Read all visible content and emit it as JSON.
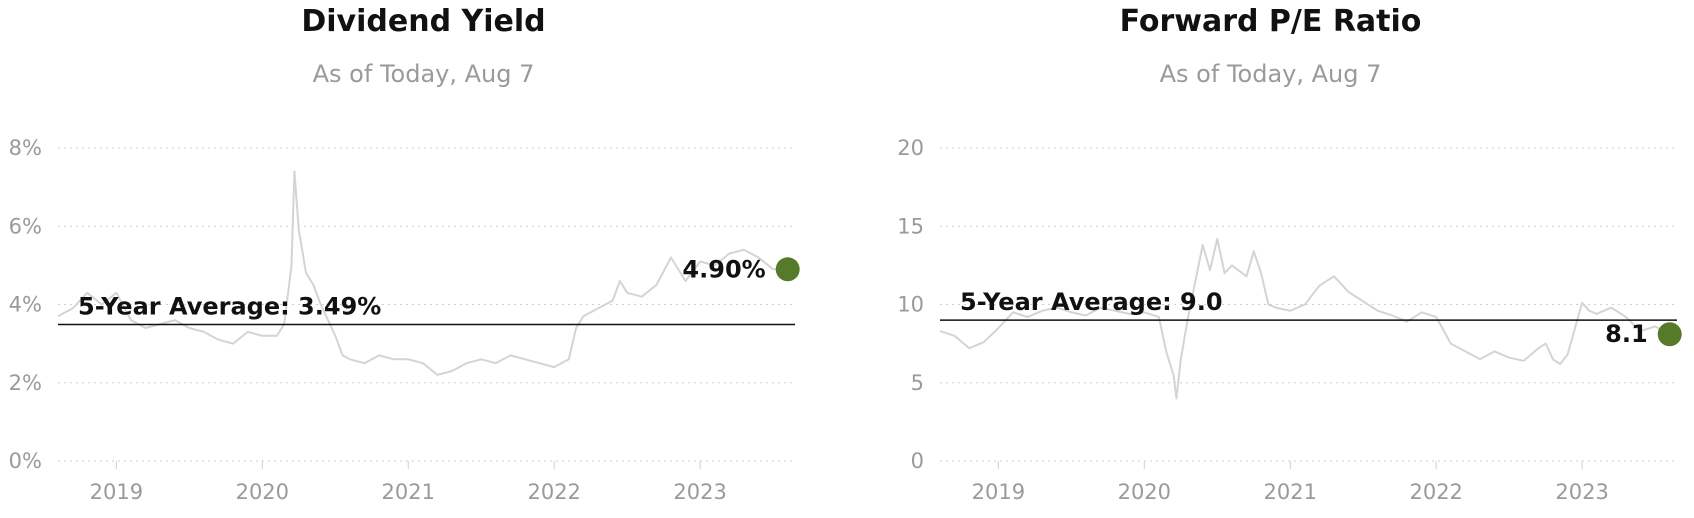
{
  "chart_data": [
    {
      "type": "line",
      "title": "Dividend Yield",
      "subtitle": "As of Today, Aug 7",
      "y_unit": "%",
      "xlim": [
        2018.6,
        2023.65
      ],
      "ylim": [
        0,
        8
      ],
      "y_ticks": [
        0,
        2,
        4,
        6,
        8
      ],
      "y_tick_labels": [
        "0%",
        "2%",
        "4%",
        "6%",
        "8%"
      ],
      "x_ticks": [
        2019,
        2020,
        2021,
        2022,
        2023
      ],
      "x_tick_labels": [
        "2019",
        "2020",
        "2021",
        "2022",
        "2023"
      ],
      "grid": true,
      "average": {
        "value": 3.49,
        "label": "5-Year Average: 3.49%"
      },
      "current": {
        "x": 2023.6,
        "value": 4.9,
        "label": "4.90%",
        "color": "#557a2a"
      },
      "series": [
        {
          "color": "#d4d4d4",
          "x": [
            2018.6,
            2018.7,
            2018.8,
            2018.9,
            2019.0,
            2019.1,
            2019.2,
            2019.3,
            2019.4,
            2019.5,
            2019.6,
            2019.7,
            2019.8,
            2019.9,
            2020.0,
            2020.1,
            2020.15,
            2020.2,
            2020.22,
            2020.25,
            2020.3,
            2020.35,
            2020.4,
            2020.45,
            2020.5,
            2020.55,
            2020.6,
            2020.7,
            2020.8,
            2020.9,
            2021.0,
            2021.1,
            2021.2,
            2021.3,
            2021.4,
            2021.5,
            2021.6,
            2021.7,
            2021.8,
            2021.9,
            2022.0,
            2022.1,
            2022.15,
            2022.2,
            2022.3,
            2022.4,
            2022.45,
            2022.5,
            2022.6,
            2022.7,
            2022.8,
            2022.9,
            2023.0,
            2023.1,
            2023.2,
            2023.3,
            2023.4,
            2023.5,
            2023.6
          ],
          "values": [
            3.7,
            3.9,
            4.3,
            4.0,
            4.3,
            3.6,
            3.4,
            3.5,
            3.6,
            3.4,
            3.3,
            3.1,
            3.0,
            3.3,
            3.2,
            3.2,
            3.5,
            5.0,
            7.4,
            5.9,
            4.8,
            4.5,
            4.0,
            3.6,
            3.2,
            2.7,
            2.6,
            2.5,
            2.7,
            2.6,
            2.6,
            2.5,
            2.2,
            2.3,
            2.5,
            2.6,
            2.5,
            2.7,
            2.6,
            2.5,
            2.4,
            2.6,
            3.4,
            3.7,
            3.9,
            4.1,
            4.6,
            4.3,
            4.2,
            4.5,
            5.2,
            4.6,
            5.1,
            5.0,
            5.3,
            5.4,
            5.2,
            4.9,
            4.9
          ]
        }
      ]
    },
    {
      "type": "line",
      "title": "Forward P/E Ratio",
      "subtitle": "As of Today, Aug 7",
      "y_unit": "",
      "xlim": [
        2018.6,
        2023.65
      ],
      "ylim": [
        0,
        20
      ],
      "y_ticks": [
        0,
        5,
        10,
        15,
        20
      ],
      "y_tick_labels": [
        "0",
        "5",
        "10",
        "15",
        "20"
      ],
      "x_ticks": [
        2019,
        2020,
        2021,
        2022,
        2023
      ],
      "x_tick_labels": [
        "2019",
        "2020",
        "2021",
        "2022",
        "2023"
      ],
      "grid": true,
      "average": {
        "value": 9.0,
        "label": "5-Year Average: 9.0"
      },
      "current": {
        "x": 2023.6,
        "value": 8.1,
        "label": "8.1",
        "color": "#557a2a"
      },
      "series": [
        {
          "color": "#d4d4d4",
          "x": [
            2018.6,
            2018.7,
            2018.8,
            2018.9,
            2019.0,
            2019.1,
            2019.2,
            2019.3,
            2019.4,
            2019.5,
            2019.6,
            2019.7,
            2019.8,
            2019.9,
            2020.0,
            2020.1,
            2020.15,
            2020.2,
            2020.22,
            2020.25,
            2020.3,
            2020.35,
            2020.4,
            2020.45,
            2020.5,
            2020.55,
            2020.6,
            2020.7,
            2020.75,
            2020.8,
            2020.85,
            2020.9,
            2021.0,
            2021.1,
            2021.2,
            2021.3,
            2021.4,
            2021.5,
            2021.6,
            2021.7,
            2021.8,
            2021.9,
            2022.0,
            2022.1,
            2022.2,
            2022.3,
            2022.4,
            2022.5,
            2022.6,
            2022.7,
            2022.75,
            2022.8,
            2022.85,
            2022.9,
            2023.0,
            2023.05,
            2023.1,
            2023.2,
            2023.3,
            2023.4,
            2023.5,
            2023.6
          ],
          "values": [
            8.3,
            8.0,
            7.2,
            7.6,
            8.5,
            9.5,
            9.2,
            9.6,
            9.8,
            9.5,
            9.3,
            9.8,
            9.6,
            9.4,
            9.5,
            9.2,
            7.0,
            5.5,
            4.0,
            6.5,
            9.2,
            11.5,
            13.8,
            12.2,
            14.2,
            12.0,
            12.5,
            11.8,
            13.4,
            12.0,
            10.0,
            9.8,
            9.6,
            10.0,
            11.2,
            11.8,
            10.8,
            10.2,
            9.6,
            9.3,
            8.9,
            9.5,
            9.2,
            7.5,
            7.0,
            6.5,
            7.0,
            6.6,
            6.4,
            7.2,
            7.5,
            6.5,
            6.2,
            6.8,
            10.1,
            9.6,
            9.4,
            9.8,
            9.2,
            8.3,
            8.6,
            8.1
          ]
        }
      ]
    }
  ]
}
